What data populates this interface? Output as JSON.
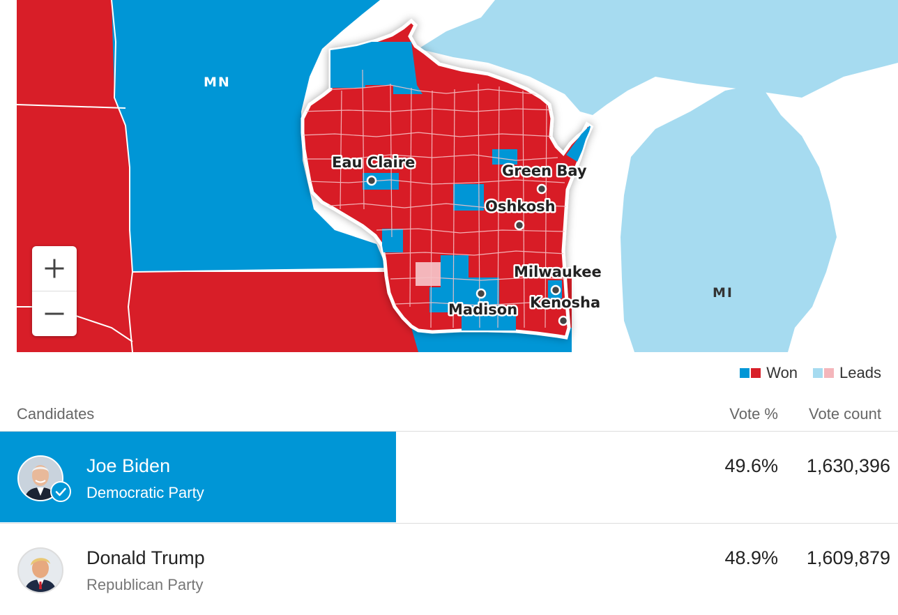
{
  "map": {
    "state_labels": {
      "mn": "MN",
      "mi": "MI"
    },
    "cities": {
      "eau_claire": "Eau Claire",
      "green_bay": "Green Bay",
      "oshkosh": "Oshkosh",
      "milwaukee": "Milwaukee",
      "madison": "Madison",
      "kenosha": "Kenosha"
    },
    "zoom_controls": {
      "zoom_in_icon": "plus-icon",
      "zoom_out_icon": "minus-icon"
    },
    "colors": {
      "dem_won": "#0096d6",
      "rep_won": "#d81e28",
      "dem_leads": "#a6dbf0",
      "rep_leads": "#f4b6bb"
    }
  },
  "legend": {
    "won_label": "Won",
    "leads_label": "Leads"
  },
  "table": {
    "headers": {
      "candidates": "Candidates",
      "vote_pct": "Vote %",
      "vote_count": "Vote count"
    },
    "rows": [
      {
        "name": "Joe Biden",
        "party": "Democratic Party",
        "pct": "49.6%",
        "count": "1,630,396",
        "winner": true
      },
      {
        "name": "Donald Trump",
        "party": "Republican Party",
        "pct": "48.9%",
        "count": "1,609,879",
        "winner": false
      }
    ]
  }
}
